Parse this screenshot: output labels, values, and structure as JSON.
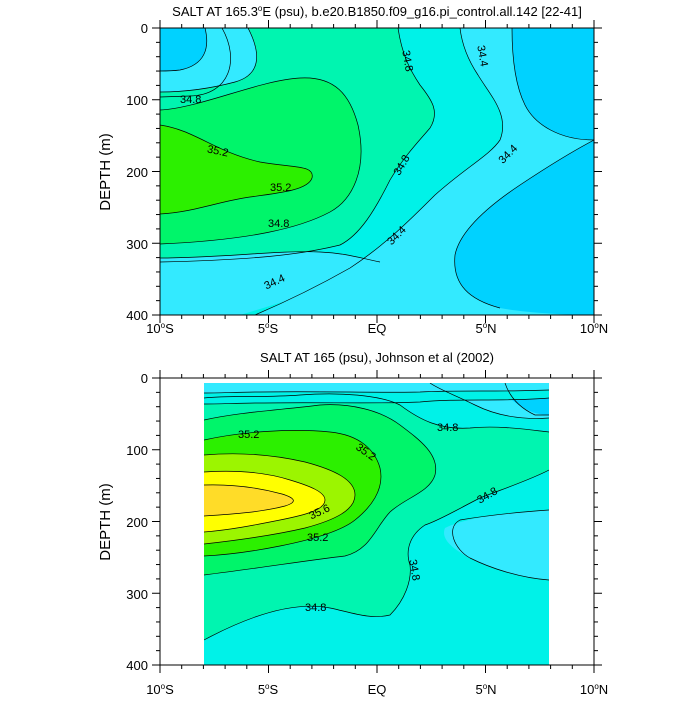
{
  "chart_data": [
    {
      "type": "contour",
      "title_html": "SALT AT 165.3°E (psu), b.e20.B1850.f09_g16.pi_control.all.142 [22-41]",
      "title_parts": [
        "SALT AT 165.3",
        "o",
        "E (psu), b.e20.B1850.f09_g16.pi_control.all.142 [22-41]"
      ],
      "ylabel": "DEPTH (m)",
      "ylim": [
        400,
        0
      ],
      "xlim": [
        -10,
        10
      ],
      "yticks": [
        "0",
        "100",
        "200",
        "300",
        "400"
      ],
      "xticks": [
        {
          "num": "10",
          "sup": "o",
          "hem": "S"
        },
        {
          "num": "5",
          "sup": "o",
          "hem": "S"
        },
        {
          "num": "EQ",
          "sup": "",
          "hem": ""
        },
        {
          "num": "5",
          "sup": "o",
          "hem": "N"
        },
        {
          "num": "10",
          "sup": "o",
          "hem": "N"
        }
      ],
      "contour_labels": [
        "34.8",
        "34.8",
        "34.4",
        "35.2",
        "35.2",
        "34.8",
        "34.4",
        "34.8",
        "34.4",
        "34.4"
      ],
      "levels": [
        34.2,
        34.4,
        34.6,
        34.8,
        35.0,
        35.2
      ],
      "data_extent_lat": [
        -10,
        10
      ]
    },
    {
      "type": "contour",
      "title": "SALT AT 165 (psu), Johnson et al (2002)",
      "ylabel": "DEPTH (m)",
      "ylim": [
        400,
        0
      ],
      "xlim": [
        -10,
        10
      ],
      "yticks": [
        "0",
        "100",
        "200",
        "300",
        "400"
      ],
      "xticks": [
        {
          "num": "10",
          "sup": "o",
          "hem": "S"
        },
        {
          "num": "5",
          "sup": "o",
          "hem": "S"
        },
        {
          "num": "EQ",
          "sup": "",
          "hem": ""
        },
        {
          "num": "5",
          "sup": "o",
          "hem": "N"
        },
        {
          "num": "10",
          "sup": "o",
          "hem": "N"
        }
      ],
      "contour_labels": [
        "35.2",
        "35.2",
        "34.8",
        "35.6",
        "35.2",
        "34.8",
        "34.8",
        "34.8"
      ],
      "levels": [
        34.2,
        34.4,
        34.6,
        34.8,
        35.0,
        35.2,
        35.4,
        35.6
      ],
      "data_extent_lat": [
        -8,
        8
      ],
      "data_extent_depth": [
        10,
        400
      ]
    }
  ],
  "palette": {
    "s34_2": "#00d2ff",
    "s34_4": "#33eaff",
    "s34_6": "#00f2e8",
    "s34_8": "#00f5b0",
    "s35_0": "#00f56a",
    "s35_2": "#2cf000",
    "s35_4": "#9cf500",
    "s35_6": "#ffff00",
    "s35_8": "#ffdc28"
  }
}
